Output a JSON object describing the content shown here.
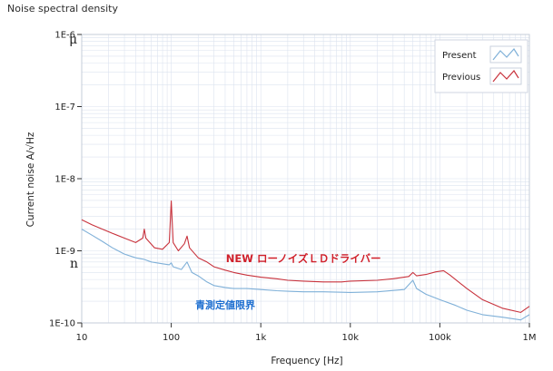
{
  "panel_title": "Noise spectral density",
  "side_letters": {
    "top": "μ",
    "bottom": "n"
  },
  "colors": {
    "present": "#7fb0d8",
    "previous": "#c8323c",
    "grid": "#dce3ef",
    "axis": "#333333"
  },
  "chart_data": {
    "type": "line",
    "xlabel": "Frequency [Hz]",
    "ylabel": "Current noise  A/√Hz",
    "x_scale": "log",
    "y_scale": "log",
    "xlim": [
      10,
      1000000
    ],
    "ylim": [
      1e-10,
      1e-06
    ],
    "x_ticks": [
      {
        "value": 10,
        "label": "10"
      },
      {
        "value": 100,
        "label": "100"
      },
      {
        "value": 1000,
        "label": "1k"
      },
      {
        "value": 10000,
        "label": "10k"
      },
      {
        "value": 100000,
        "label": "100k"
      },
      {
        "value": 1000000,
        "label": "1M"
      }
    ],
    "y_ticks": [
      {
        "value": 1e-10,
        "label": "1E-10"
      },
      {
        "value": 1e-09,
        "label": "1E-9"
      },
      {
        "value": 1e-08,
        "label": "1E-8"
      },
      {
        "value": 1e-07,
        "label": "1E-7"
      },
      {
        "value": 1e-06,
        "label": "1E-6"
      }
    ],
    "grid": true,
    "legend_position": "top-right",
    "series": [
      {
        "name": "Previous",
        "color": "#c8323c",
        "points": [
          [
            10,
            2.7e-09
          ],
          [
            13,
            2.3e-09
          ],
          [
            17,
            2e-09
          ],
          [
            22,
            1.75e-09
          ],
          [
            30,
            1.5e-09
          ],
          [
            40,
            1.3e-09
          ],
          [
            48,
            1.5e-09
          ],
          [
            50,
            2e-09
          ],
          [
            52,
            1.5e-09
          ],
          [
            65,
            1.1e-09
          ],
          [
            80,
            1.05e-09
          ],
          [
            95,
            1.3e-09
          ],
          [
            100,
            4.9e-09
          ],
          [
            105,
            1.3e-09
          ],
          [
            120,
            1e-09
          ],
          [
            140,
            1.25e-09
          ],
          [
            150,
            1.6e-09
          ],
          [
            160,
            1.1e-09
          ],
          [
            200,
            8e-10
          ],
          [
            250,
            7e-10
          ],
          [
            300,
            6e-10
          ],
          [
            400,
            5.4e-10
          ],
          [
            500,
            5e-10
          ],
          [
            700,
            4.6e-10
          ],
          [
            1000,
            4.3e-10
          ],
          [
            1500,
            4.1e-10
          ],
          [
            2000,
            3.9e-10
          ],
          [
            3000,
            3.8e-10
          ],
          [
            5000,
            3.7e-10
          ],
          [
            8000,
            3.7e-10
          ],
          [
            10000,
            3.8e-10
          ],
          [
            20000,
            3.9e-10
          ],
          [
            30000,
            4.1e-10
          ],
          [
            45000,
            4.4e-10
          ],
          [
            50000,
            5e-10
          ],
          [
            55000,
            4.5e-10
          ],
          [
            70000,
            4.7e-10
          ],
          [
            90000,
            5.1e-10
          ],
          [
            110000,
            5.3e-10
          ],
          [
            130000,
            4.6e-10
          ],
          [
            200000,
            3e-10
          ],
          [
            300000,
            2.1e-10
          ],
          [
            500000,
            1.6e-10
          ],
          [
            800000,
            1.4e-10
          ],
          [
            1000000,
            1.7e-10
          ]
        ]
      },
      {
        "name": "Present",
        "color": "#7fb0d8",
        "points": [
          [
            10,
            2e-09
          ],
          [
            13,
            1.65e-09
          ],
          [
            17,
            1.35e-09
          ],
          [
            22,
            1.1e-09
          ],
          [
            30,
            9e-10
          ],
          [
            40,
            8e-10
          ],
          [
            50,
            7.6e-10
          ],
          [
            60,
            7e-10
          ],
          [
            80,
            6.6e-10
          ],
          [
            95,
            6.4e-10
          ],
          [
            100,
            6.8e-10
          ],
          [
            105,
            6e-10
          ],
          [
            130,
            5.5e-10
          ],
          [
            150,
            7e-10
          ],
          [
            170,
            5e-10
          ],
          [
            200,
            4.5e-10
          ],
          [
            250,
            3.7e-10
          ],
          [
            300,
            3.3e-10
          ],
          [
            400,
            3.1e-10
          ],
          [
            500,
            3e-10
          ],
          [
            700,
            3e-10
          ],
          [
            1000,
            2.9e-10
          ],
          [
            1500,
            2.8e-10
          ],
          [
            2000,
            2.75e-10
          ],
          [
            3000,
            2.7e-10
          ],
          [
            5000,
            2.7e-10
          ],
          [
            10000,
            2.65e-10
          ],
          [
            20000,
            2.7e-10
          ],
          [
            40000,
            2.9e-10
          ],
          [
            50000,
            3.9e-10
          ],
          [
            55000,
            3e-10
          ],
          [
            70000,
            2.5e-10
          ],
          [
            100000,
            2.1e-10
          ],
          [
            150000,
            1.75e-10
          ],
          [
            200000,
            1.5e-10
          ],
          [
            300000,
            1.3e-10
          ],
          [
            500000,
            1.2e-10
          ],
          [
            800000,
            1.1e-10
          ],
          [
            1000000,
            1.3e-10
          ]
        ]
      }
    ],
    "annotations": [
      {
        "text": "NEW ローノイズＬＤドライバー",
        "color": "#d0202a",
        "x": 3000,
        "y": 7e-10
      },
      {
        "text": "青測定値限界",
        "color": "#1e6fd0",
        "x": 400,
        "y": 1.6e-10
      }
    ]
  }
}
